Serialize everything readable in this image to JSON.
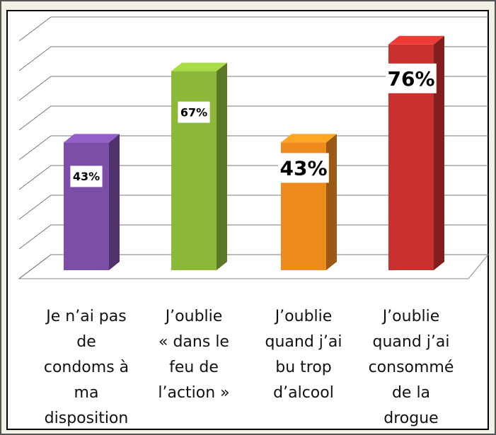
{
  "chart_data": {
    "type": "bar",
    "categories": [
      "Je n’ai pas\nde\ncondoms à\nma\ndisposition",
      "J’oublie\n« dans le\nfeu de\nl’action »",
      "J’oublie\nquand j’ai\nbu trop\nd’alcool",
      "J’oublie\nquand j’ai\nconsommé\nde la\ndrogue"
    ],
    "values": [
      43,
      67,
      43,
      76
    ],
    "value_labels": [
      "43%",
      "67%",
      "43%",
      "76%"
    ],
    "colors": [
      "#7b4fa8",
      "#8cb83a",
      "#ee8a1e",
      "#c8302d"
    ],
    "ylim": [
      0,
      90
    ],
    "yticks": [
      0,
      10,
      20,
      30,
      40,
      50,
      60,
      70,
      80,
      90
    ],
    "grid": true
  }
}
